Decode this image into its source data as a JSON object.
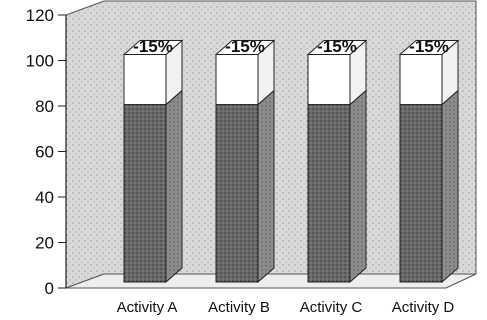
{
  "chart_data": {
    "type": "bar",
    "style": "3d-stacked",
    "categories": [
      "Activity A",
      "Activity B",
      "Activity C",
      "Activity D"
    ],
    "series": [
      {
        "values": [
          78,
          78,
          78,
          78
        ]
      },
      {
        "values": [
          22,
          22,
          22,
          22
        ]
      }
    ],
    "data_labels": [
      "-15%",
      "-15%",
      "-15%",
      "-15%"
    ],
    "ylim": [
      0,
      120
    ],
    "yticks": [
      "0",
      "20",
      "40",
      "60",
      "80",
      "100",
      "120"
    ],
    "grid": false,
    "legend": "none",
    "colors": {
      "lower": "#5c5c5c",
      "upper": "#ffffff",
      "wall": "#cfcfcf"
    }
  }
}
